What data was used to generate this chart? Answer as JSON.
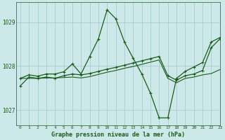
{
  "title": "Graphe pression niveau de la mer (hPa)",
  "bg_color": "#cce8e8",
  "grid_color": "#aacccc",
  "line_color": "#1a5c1a",
  "xlim": [
    -0.5,
    23
  ],
  "ylim": [
    1026.65,
    1029.45
  ],
  "yticks": [
    1027,
    1028,
    1029
  ],
  "xticks": [
    0,
    1,
    2,
    3,
    4,
    5,
    6,
    7,
    8,
    9,
    10,
    11,
    12,
    13,
    14,
    15,
    16,
    17,
    18,
    19,
    20,
    21,
    22,
    23
  ],
  "series": [
    {
      "y": [
        1027.55,
        1027.75,
        1027.72,
        1027.75,
        1027.72,
        1027.78,
        1027.82,
        1027.8,
        1027.83,
        1027.88,
        1027.93,
        1027.97,
        1028.02,
        1028.07,
        1028.12,
        1028.17,
        1028.22,
        1027.78,
        1027.68,
        1027.78,
        1027.82,
        1027.9,
        1028.42,
        1028.62
      ],
      "marker": true,
      "lw": 0.9
    },
    {
      "y": [
        1027.72,
        1027.72,
        1027.72,
        1027.73,
        1027.73,
        1027.74,
        1027.75,
        1027.73,
        1027.76,
        1027.81,
        1027.86,
        1027.9,
        1027.95,
        1027.99,
        1028.04,
        1028.09,
        1028.14,
        1027.72,
        1027.62,
        1027.72,
        1027.75,
        1027.8,
        1027.83,
        1027.92
      ],
      "marker": false,
      "lw": 0.8
    },
    {
      "y": [
        1027.72,
        1027.8,
        1027.77,
        1027.82,
        1027.82,
        1027.87,
        1028.05,
        1027.82,
        1028.22,
        1028.62,
        1029.28,
        1029.08,
        1028.55,
        1028.18,
        1027.82,
        1027.38,
        1026.82,
        1026.82,
        1027.72,
        1027.88,
        1027.98,
        1028.08,
        1028.55,
        1028.65
      ],
      "marker": true,
      "lw": 0.9
    }
  ]
}
